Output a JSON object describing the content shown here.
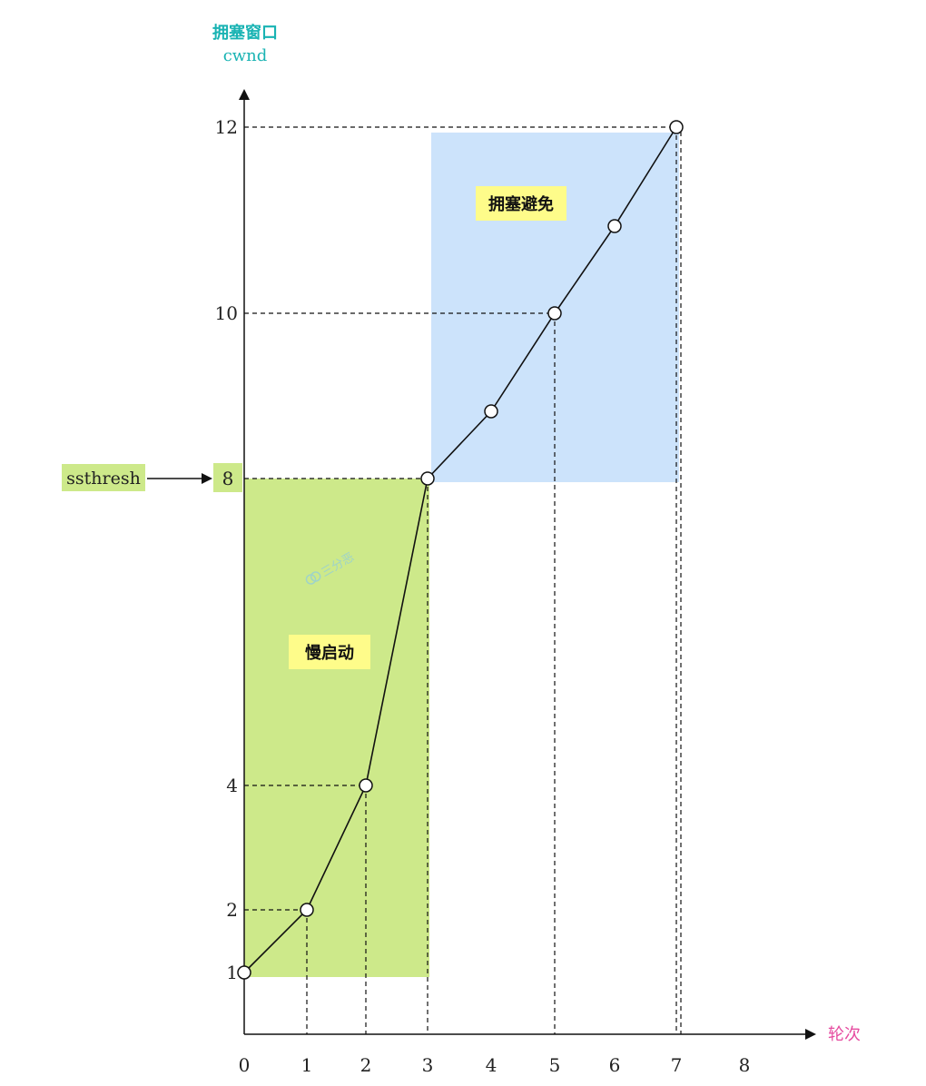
{
  "chart_data": {
    "type": "line",
    "ylabel": [
      "拥塞窗口",
      "cwnd"
    ],
    "xlabel": "轮次",
    "x_ticks": [
      0,
      1,
      2,
      3,
      4,
      5,
      6,
      7,
      8
    ],
    "y_ticks": [
      1,
      2,
      4,
      8,
      10,
      12
    ],
    "points": [
      {
        "x": 0,
        "y": 1
      },
      {
        "x": 1,
        "y": 2
      },
      {
        "x": 2,
        "y": 4
      },
      {
        "x": 3,
        "y": 8
      },
      {
        "x": 4,
        "y": 9
      },
      {
        "x": 5,
        "y": 10
      },
      {
        "x": 6,
        "y": 11
      },
      {
        "x": 7,
        "y": 12
      }
    ],
    "dashed_guides": [
      {
        "x": 1,
        "y": 2
      },
      {
        "x": 2,
        "y": 4
      },
      {
        "x": 3,
        "y": 8
      },
      {
        "x": 5,
        "y": 10
      },
      {
        "x": 7,
        "y": 12
      }
    ],
    "regions": [
      {
        "label": "慢启动",
        "x_range": [
          0,
          3
        ],
        "y_range": [
          1,
          8
        ],
        "color": "#cde98a"
      },
      {
        "label": "拥塞避免",
        "x_range": [
          3,
          7
        ],
        "y_range": [
          8,
          12
        ],
        "color": "#cce3fb"
      }
    ],
    "threshold": {
      "label": "ssthresh",
      "value": 8,
      "color": "#cde98a"
    },
    "watermark": "三分恶",
    "colors": {
      "ylabel": "#19b3b3",
      "xlabel": "#e64ca0",
      "label_bg": "#fefc8a"
    }
  }
}
